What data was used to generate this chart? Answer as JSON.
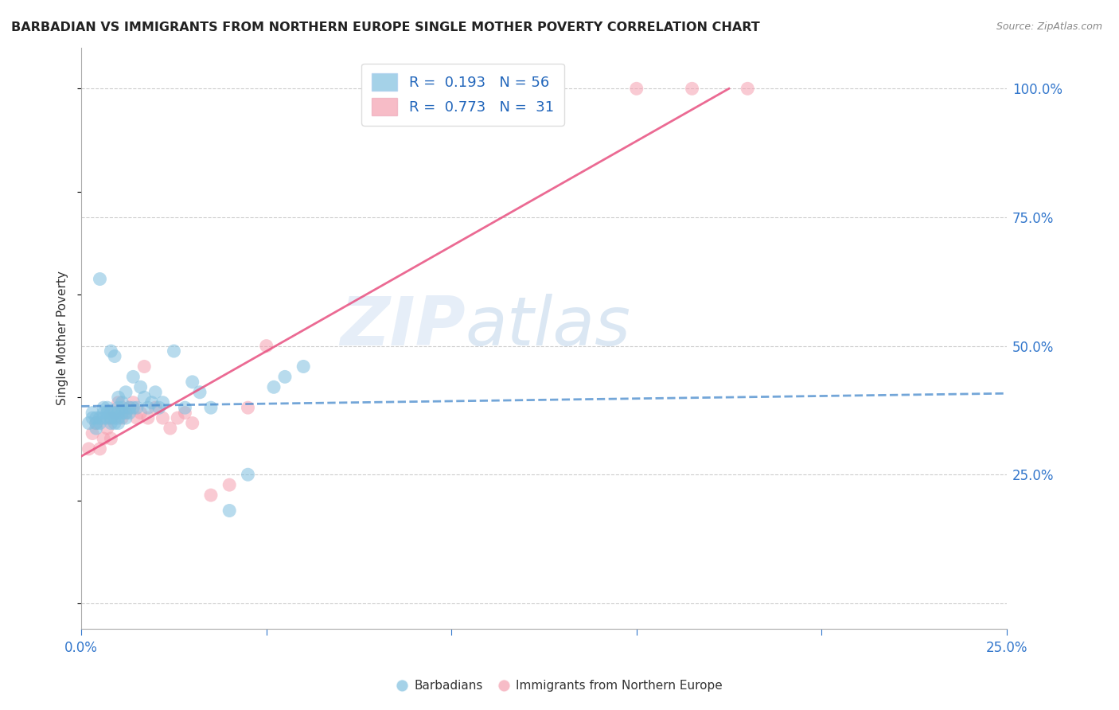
{
  "title": "BARBADIAN VS IMMIGRANTS FROM NORTHERN EUROPE SINGLE MOTHER POVERTY CORRELATION CHART",
  "source": "Source: ZipAtlas.com",
  "ylabel_left": "Single Mother Poverty",
  "ylabel_right_ticks": [
    "100.0%",
    "75.0%",
    "50.0%",
    "25.0%"
  ],
  "ylabel_right_vals": [
    1.0,
    0.75,
    0.5,
    0.25
  ],
  "xlim": [
    0.0,
    0.25
  ],
  "ylim": [
    -0.05,
    1.08
  ],
  "xticks": [
    0.0,
    0.05,
    0.1,
    0.15,
    0.2,
    0.25
  ],
  "xtick_labels": [
    "0.0%",
    "",
    "",
    "",
    "",
    "25.0%"
  ],
  "blue_color": "#7fbfdf",
  "pink_color": "#f5a0b0",
  "blue_line_color": "#4488cc",
  "pink_line_color": "#e85080",
  "watermark_zip": "ZIP",
  "watermark_atlas": "atlas",
  "barbadians_x": [
    0.002,
    0.003,
    0.003,
    0.004,
    0.004,
    0.004,
    0.005,
    0.005,
    0.005,
    0.006,
    0.006,
    0.006,
    0.007,
    0.007,
    0.007,
    0.008,
    0.008,
    0.008,
    0.008,
    0.009,
    0.009,
    0.009,
    0.009,
    0.01,
    0.01,
    0.01,
    0.01,
    0.01,
    0.011,
    0.011,
    0.011,
    0.012,
    0.012,
    0.012,
    0.013,
    0.013,
    0.014,
    0.014,
    0.015,
    0.016,
    0.017,
    0.018,
    0.019,
    0.02,
    0.021,
    0.022,
    0.025,
    0.028,
    0.03,
    0.032,
    0.035,
    0.04,
    0.045,
    0.052,
    0.055,
    0.06
  ],
  "barbadians_y": [
    0.35,
    0.36,
    0.37,
    0.34,
    0.35,
    0.36,
    0.35,
    0.36,
    0.63,
    0.36,
    0.37,
    0.38,
    0.36,
    0.37,
    0.38,
    0.35,
    0.36,
    0.37,
    0.49,
    0.35,
    0.36,
    0.37,
    0.48,
    0.35,
    0.36,
    0.37,
    0.38,
    0.4,
    0.37,
    0.38,
    0.39,
    0.36,
    0.37,
    0.41,
    0.37,
    0.38,
    0.38,
    0.44,
    0.38,
    0.42,
    0.4,
    0.38,
    0.39,
    0.41,
    0.38,
    0.39,
    0.49,
    0.38,
    0.43,
    0.41,
    0.38,
    0.18,
    0.25,
    0.42,
    0.44,
    0.46
  ],
  "northern_eu_x": [
    0.002,
    0.003,
    0.004,
    0.005,
    0.006,
    0.007,
    0.008,
    0.008,
    0.009,
    0.01,
    0.011,
    0.012,
    0.013,
    0.014,
    0.015,
    0.016,
    0.017,
    0.018,
    0.02,
    0.022,
    0.024,
    0.026,
    0.028,
    0.03,
    0.035,
    0.04,
    0.045,
    0.05,
    0.15,
    0.165,
    0.18
  ],
  "northern_eu_y": [
    0.3,
    0.33,
    0.35,
    0.3,
    0.32,
    0.34,
    0.32,
    0.36,
    0.37,
    0.39,
    0.36,
    0.37,
    0.38,
    0.39,
    0.36,
    0.37,
    0.46,
    0.36,
    0.38,
    0.36,
    0.34,
    0.36,
    0.37,
    0.35,
    0.21,
    0.23,
    0.38,
    0.5,
    1.0,
    1.0,
    1.0
  ]
}
